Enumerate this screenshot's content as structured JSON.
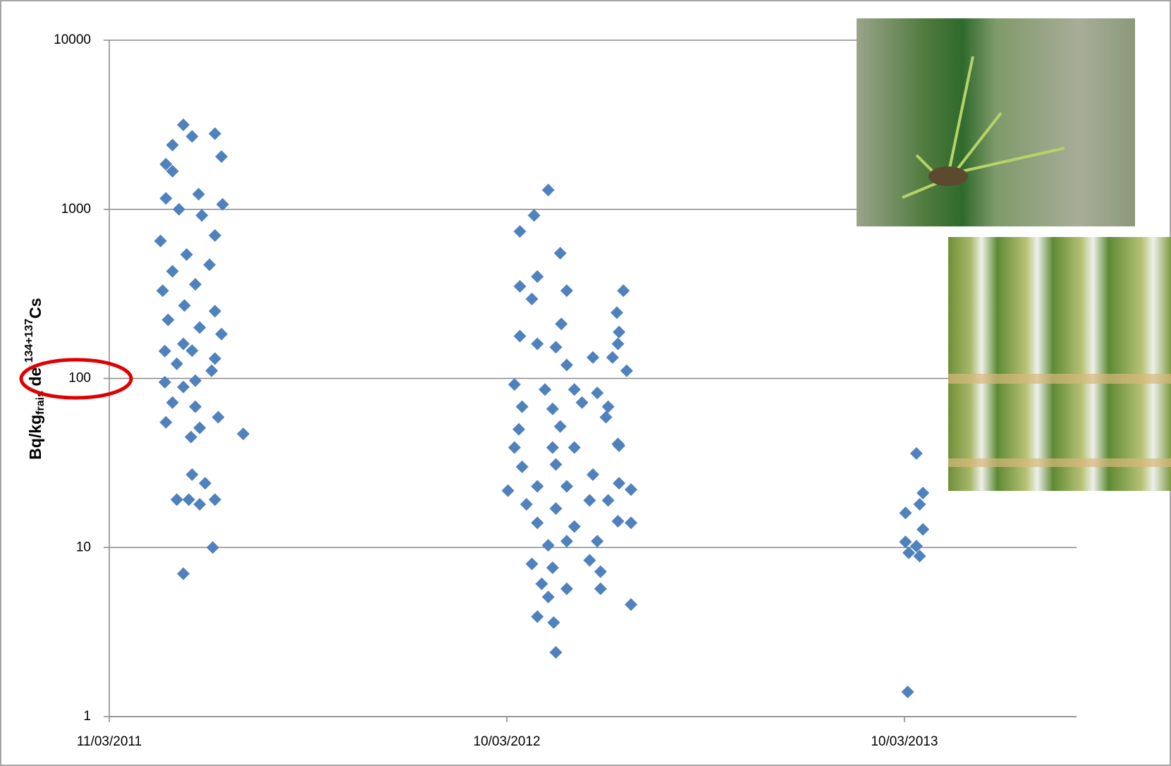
{
  "chart_data": {
    "type": "scatter",
    "color": "#4f81bd",
    "y_label": [
      "Bq/kg",
      "frais",
      " de ",
      "134+137",
      "Cs"
    ],
    "log_y": true,
    "grid": true,
    "xlim": [
      "2011-03-11",
      "2013-08-15"
    ],
    "xticks": [
      {
        "value": "2011-03-11",
        "label": "11/03/2011"
      },
      {
        "value": "2012-03-10",
        "label": "10/03/2012"
      },
      {
        "value": "2013-03-10",
        "label": "10/03/2013"
      }
    ],
    "ylim": [
      1,
      10000
    ],
    "yticks": [
      1,
      10,
      100,
      1000,
      10000
    ],
    "x": [
      "2011-05-18",
      "2011-06-16",
      "2011-05-26",
      "2011-05-08",
      "2011-06-22",
      "2011-05-02",
      "2011-05-08",
      "2011-06-01",
      "2011-06-23",
      "2011-05-02",
      "2011-05-14",
      "2011-06-04",
      "2011-04-27",
      "2011-06-16",
      "2011-05-21",
      "2011-05-08",
      "2011-06-11",
      "2011-04-29",
      "2011-05-29",
      "2011-05-19",
      "2011-06-16",
      "2011-05-04",
      "2011-06-02",
      "2011-06-22",
      "2011-05-18",
      "2011-05-01",
      "2011-05-26",
      "2011-06-16",
      "2011-05-12",
      "2011-06-13",
      "2011-05-01",
      "2011-05-29",
      "2011-05-18",
      "2011-05-08",
      "2011-05-29",
      "2011-05-02",
      "2011-06-19",
      "2011-07-12",
      "2011-06-02",
      "2011-05-25",
      "2011-05-26",
      "2011-06-07",
      "2011-05-12",
      "2011-05-23",
      "2011-06-02",
      "2011-06-16",
      "2011-06-14",
      "2011-05-18",
      "2012-04-17",
      "2012-04-04",
      "2012-03-22",
      "2012-04-28",
      "2012-03-22",
      "2012-04-07",
      "2012-05-04",
      "2012-06-25",
      "2012-04-02",
      "2012-06-19",
      "2012-04-29",
      "2012-03-22",
      "2012-06-21",
      "2012-04-07",
      "2012-04-24",
      "2012-06-20",
      "2012-05-04",
      "2012-05-28",
      "2012-06-28",
      "2012-06-15",
      "2012-03-17",
      "2012-04-14",
      "2012-05-11",
      "2012-06-01",
      "2012-03-24",
      "2012-04-21",
      "2012-05-18",
      "2012-06-11",
      "2012-03-21",
      "2012-04-28",
      "2012-06-09",
      "2012-03-17",
      "2012-04-21",
      "2012-05-11",
      "2012-06-20",
      "2012-06-21",
      "2012-03-24",
      "2012-04-24",
      "2012-05-28",
      "2012-03-11",
      "2012-04-07",
      "2012-05-04",
      "2012-06-21",
      "2012-07-02",
      "2012-03-28",
      "2012-04-24",
      "2012-05-25",
      "2012-06-11",
      "2012-04-07",
      "2012-05-11",
      "2012-06-20",
      "2012-07-02",
      "2012-04-17",
      "2012-05-04",
      "2012-06-01",
      "2012-04-02",
      "2012-04-21",
      "2012-05-25",
      "2012-06-04",
      "2012-04-11",
      "2012-05-04",
      "2012-06-04",
      "2012-04-17",
      "2012-04-07",
      "2012-04-22",
      "2012-07-02",
      "2012-04-24",
      "2013-03-21",
      "2013-03-27",
      "2013-03-11",
      "2013-03-24",
      "2013-03-27",
      "2013-03-11",
      "2013-03-21",
      "2013-03-24",
      "2013-03-14",
      "2013-03-13"
    ],
    "values": [
      3160,
      2800,
      2700,
      2400,
      2050,
      1850,
      1680,
      1230,
      1070,
      1160,
      1000,
      920,
      650,
      700,
      540,
      430,
      470,
      330,
      360,
      270,
      250,
      222,
      200,
      183,
      160,
      145,
      146,
      131,
      122,
      111,
      95,
      97,
      89,
      72,
      68,
      55,
      59,
      47,
      51,
      45,
      27,
      24,
      19.2,
      19.2,
      18,
      19.2,
      10,
      7,
      1300,
      920,
      740,
      550,
      350,
      400,
      330,
      330,
      295,
      245,
      210,
      178,
      188,
      160,
      153,
      160,
      120,
      133,
      111,
      133,
      92,
      86,
      86,
      82,
      68,
      66,
      72,
      68,
      50,
      52,
      59,
      39,
      39,
      39,
      41,
      40,
      30,
      31,
      27,
      21.7,
      23,
      23,
      24,
      22,
      18,
      17,
      19,
      19,
      14,
      13.3,
      14.3,
      14,
      10.3,
      10.9,
      10.9,
      8,
      7.6,
      8.4,
      7.2,
      6.1,
      5.7,
      5.7,
      5.1,
      3.9,
      3.6,
      4.6,
      2.4,
      36,
      21,
      16,
      18,
      12.8,
      10.8,
      10.2,
      8.9,
      9.3,
      1.4
    ]
  }
}
